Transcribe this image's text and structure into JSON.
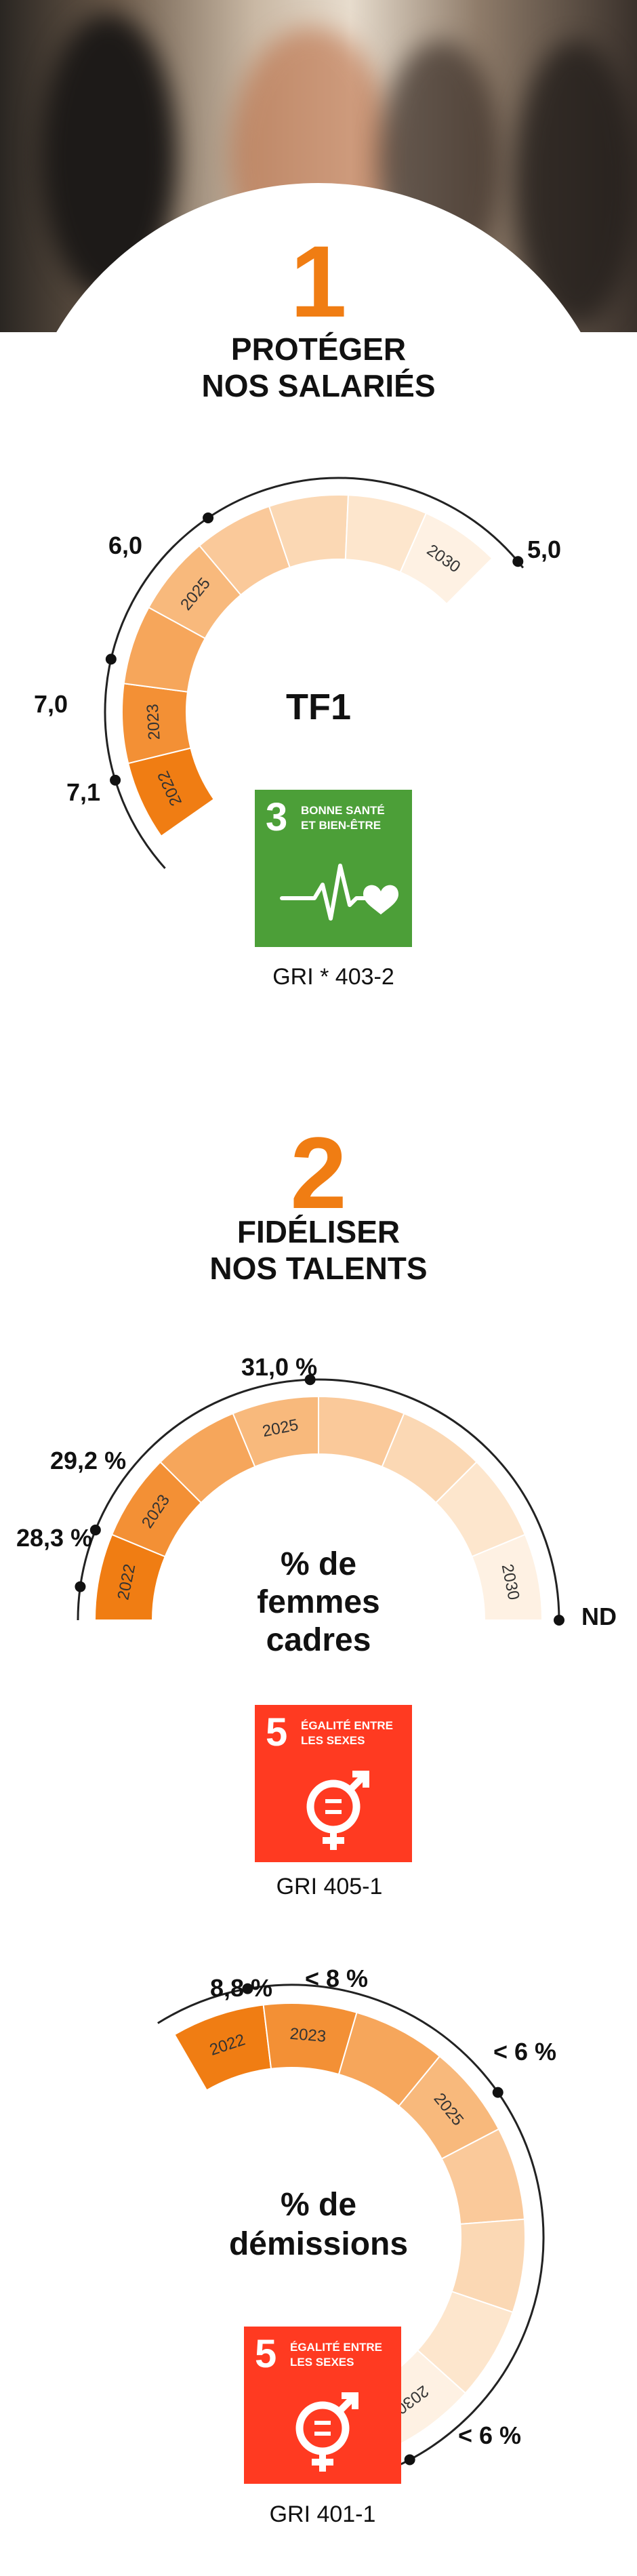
{
  "section1": {
    "number": "1",
    "title_line1": "PROTÉGER",
    "title_line2": "NOS SALARIÉS",
    "center_label": "TF1",
    "segment_years": [
      "2022",
      "2023",
      "2025",
      "2030"
    ],
    "values": {
      "v2022": "7,1",
      "v2023": "7,0",
      "v2025": "6,0",
      "v2030": "5,0"
    },
    "sdg": {
      "number": "3",
      "line1": "BONNE SANTÉ",
      "line2": "ET BIEN-ÊTRE",
      "color": "#4c9f38",
      "icon": "heartbeat-icon"
    },
    "gri": "GRI * 403-2"
  },
  "section2": {
    "number": "2",
    "title_line1": "FIDÉLISER",
    "title_line2": "NOS TALENTS",
    "gauge1": {
      "center_line1": "% de",
      "center_line2": "femmes",
      "center_line3": "cadres",
      "segment_years": [
        "2022",
        "2023",
        "2025",
        "2030"
      ],
      "values": {
        "v2022": "28,3 %",
        "v2023": "29,2 %",
        "v2025": "31,0 %",
        "v2030": "ND"
      },
      "sdg": {
        "number": "5",
        "line1": "ÉGALITÉ ENTRE",
        "line2": "LES SEXES",
        "color": "#ff3a21",
        "icon": "gender-equality-icon"
      },
      "gri": "GRI 405-1"
    },
    "gauge2": {
      "center_line1": "% de",
      "center_line2": "démissions",
      "segment_years": [
        "2022",
        "2023",
        "2025",
        "2030"
      ],
      "values": {
        "v2022": "8,8 %",
        "v2023": "< 8 %",
        "v2025": "< 6 %",
        "v2030": "< 6 %"
      },
      "sdg": {
        "number": "5",
        "line1": "ÉGALITÉ ENTRE",
        "line2": "LES SEXES",
        "color": "#ff3a21",
        "icon": "gender-equality-icon"
      },
      "gri": "GRI 401-1"
    }
  },
  "colors": {
    "accent": "#f07d13",
    "sdg3": "#4c9f38",
    "sdg5": "#ff3a21"
  }
}
